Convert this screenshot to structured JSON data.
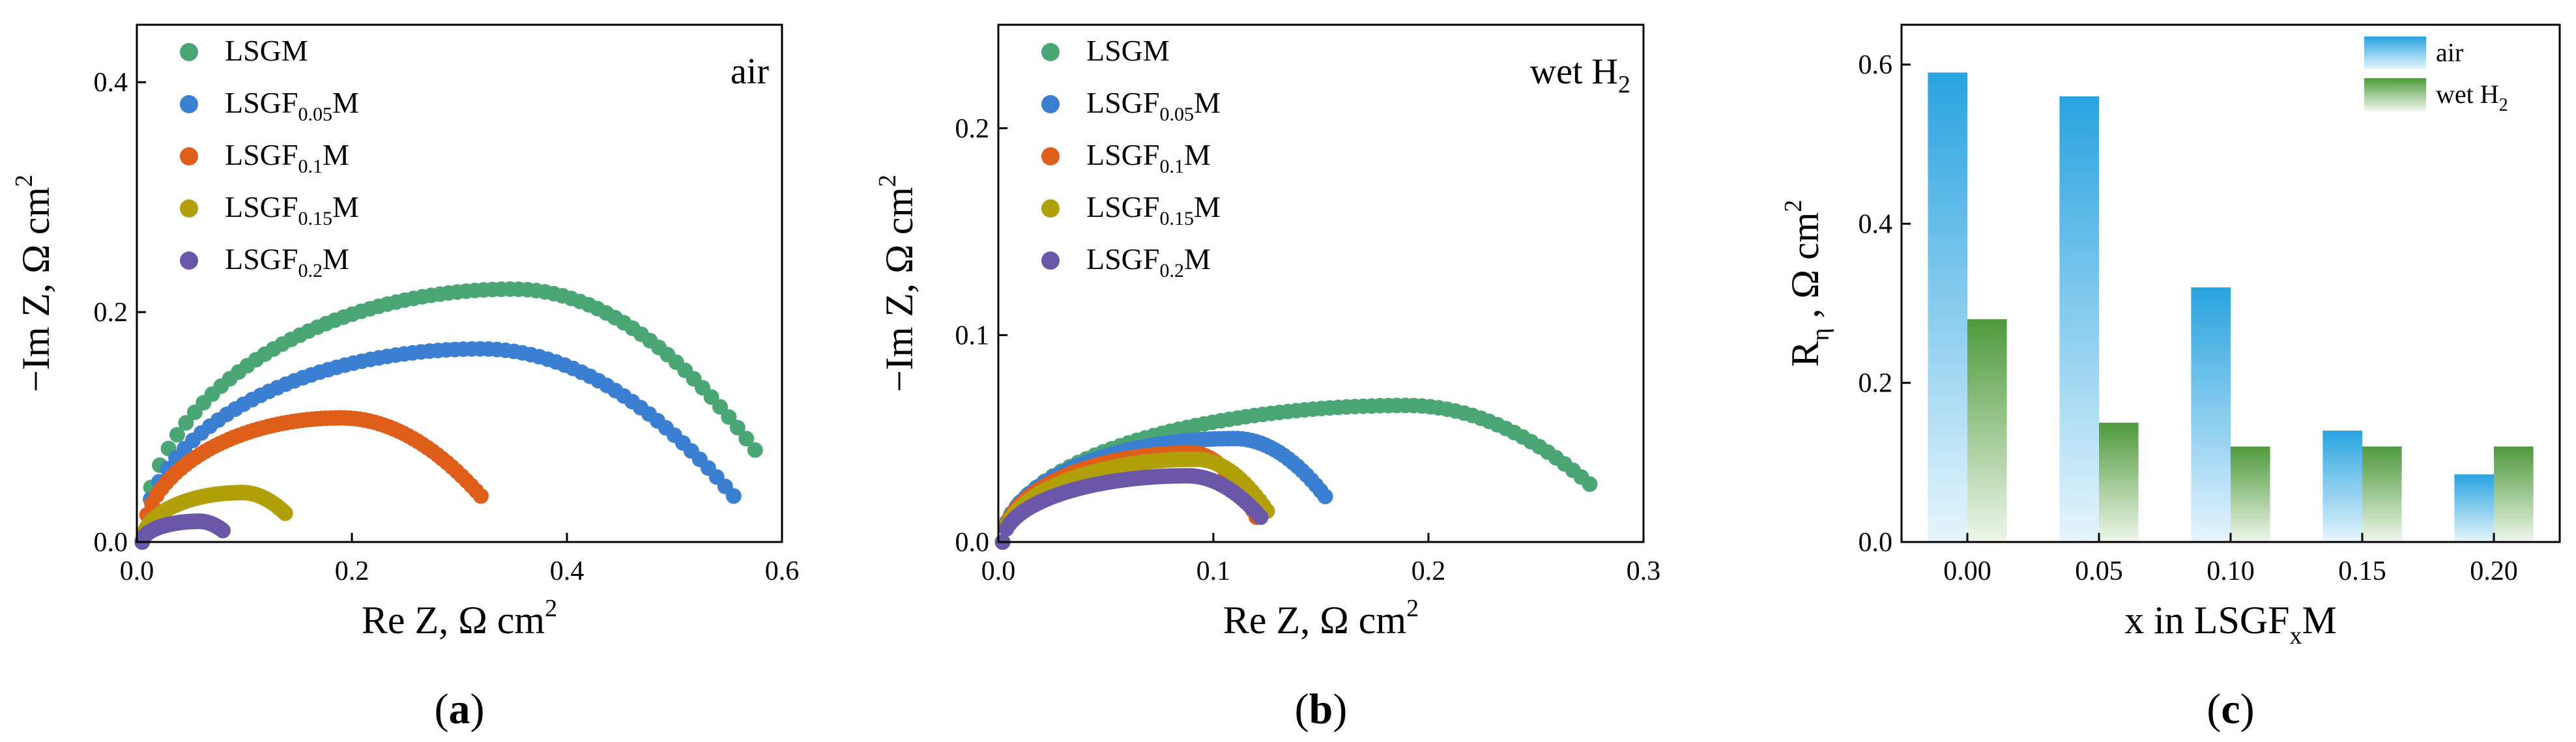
{
  "chart_data": [
    {
      "type": "scatter",
      "panel_label": "a",
      "condition": "air",
      "xlabel": "Re Z, Ω cm",
      "xlabel_sup": "2",
      "ylabel": "−Im Z, Ω cm",
      "ylabel_sup": "2",
      "xlim": [
        0,
        0.6
      ],
      "ylim": [
        0,
        0.45
      ],
      "xticks": [
        "0.0",
        "0.2",
        "0.4",
        "0.6"
      ],
      "yticks": [
        "0.0",
        "0.2",
        "0.4"
      ],
      "legend_position": "top-left",
      "series": [
        {
          "name": "LSGM",
          "base": "LSGF",
          "sub": "",
          "tail": "M",
          "label": "LSGM",
          "color": "#4aa775",
          "arc": [
            0.005,
            0.575,
            0.22,
            0.35,
            0.08
          ]
        },
        {
          "name": "LSGF0.05M",
          "base": "LSGF",
          "sub": "0.05",
          "tail": "M",
          "color": "#3a7fd1",
          "arc": [
            0.005,
            0.555,
            0.168,
            0.32,
            0.04
          ]
        },
        {
          "name": "LSGF0.1M",
          "base": "LSGF",
          "sub": "0.1",
          "tail": "M",
          "color": "#df5e19",
          "arc": [
            0.005,
            0.32,
            0.108,
            0.19,
            0.04
          ]
        },
        {
          "name": "LSGF0.15M",
          "base": "LSGF",
          "sub": "0.15",
          "tail": "M",
          "color": "#b1a00a",
          "arc": [
            0.005,
            0.138,
            0.043,
            0.098,
            0.025
          ]
        },
        {
          "name": "LSGF0.2M",
          "base": "LSGF",
          "sub": "0.2",
          "tail": "M",
          "color": "#6a57a8",
          "arc": [
            0.005,
            0.08,
            0.018,
            0.058,
            0.01
          ]
        }
      ]
    },
    {
      "type": "scatter",
      "panel_label": "b",
      "condition": "wet H",
      "condition_sub": "2",
      "xlabel": "Re Z, Ω cm",
      "xlabel_sup": "2",
      "ylabel": "−Im Z, Ω cm",
      "ylabel_sup": "2",
      "xlim": [
        0,
        0.3
      ],
      "ylim": [
        0,
        0.25
      ],
      "xticks": [
        "0.0",
        "0.1",
        "0.2",
        "0.3"
      ],
      "yticks": [
        "0.0",
        "0.1",
        "0.2"
      ],
      "legend_position": "top-left",
      "series": [
        {
          "name": "LSGM",
          "base": "LSGF",
          "sub": "",
          "tail": "M",
          "label": "LSGM",
          "color": "#4aa775",
          "arc": [
            0.002,
            0.275,
            0.066,
            0.19,
            0.028
          ]
        },
        {
          "name": "LSGF0.05M",
          "base": "LSGF",
          "sub": "0.05",
          "tail": "M",
          "color": "#3a7fd1",
          "arc": [
            0.002,
            0.152,
            0.05,
            0.11,
            0.022
          ]
        },
        {
          "name": "LSGF0.1M",
          "base": "LSGF",
          "sub": "0.1",
          "tail": "M",
          "color": "#df5e19",
          "arc": [
            0.002,
            0.12,
            0.043,
            0.09,
            0.012
          ]
        },
        {
          "name": "LSGF0.15M",
          "base": "LSGF",
          "sub": "0.15",
          "tail": "M",
          "color": "#b1a00a",
          "arc": [
            0.002,
            0.125,
            0.04,
            0.092,
            0.015
          ]
        },
        {
          "name": "LSGF0.2M",
          "base": "LSGF",
          "sub": "0.2",
          "tail": "M",
          "color": "#6a57a8",
          "arc": [
            0.002,
            0.122,
            0.032,
            0.088,
            0.012
          ]
        }
      ]
    },
    {
      "type": "bar",
      "panel_label": "c",
      "xlabel": "x in LSGF",
      "xlabel_sub": "x",
      "xlabel_tail": "M",
      "ylabel": "R",
      "ylabel_sub": "η",
      "ylabel_tail": " , Ω cm",
      "ylabel_sup": "2",
      "ylim": [
        0,
        0.65
      ],
      "yticks": [
        "0.0",
        "0.2",
        "0.4",
        "0.6"
      ],
      "categories": [
        "0.00",
        "0.05",
        "0.10",
        "0.15",
        "0.20"
      ],
      "legend_position": "top-right",
      "series": [
        {
          "name": "air",
          "label": "air",
          "color": "#29a3e0",
          "values": [
            0.59,
            0.56,
            0.32,
            0.14,
            0.085
          ]
        },
        {
          "name": "wet H2",
          "label": "wet H",
          "sub": "2",
          "color": "#4f9a3c",
          "values": [
            0.28,
            0.15,
            0.12,
            0.12,
            0.12
          ]
        }
      ]
    }
  ]
}
